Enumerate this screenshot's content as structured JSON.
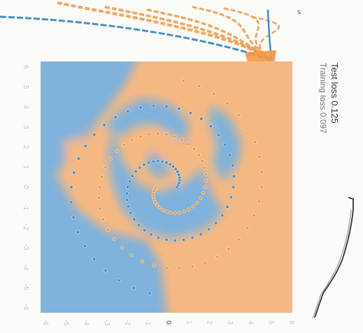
{
  "stats": {
    "test_loss_label": "Test loss",
    "test_loss_value": "0.125",
    "training_loss_label": "Training loss",
    "training_loss_value": "0.097"
  },
  "corner_label": "s",
  "colors": {
    "positive": "#f29844",
    "negative": "#4a8fc9",
    "positive_region": "#f6b882",
    "negative_region": "#7fb2dc",
    "background": "#fbfbf8"
  },
  "chart_data": {
    "type": "scatter",
    "title": "",
    "xlabel": "",
    "ylabel": "",
    "xlim": [
      -6,
      6
    ],
    "ylim": [
      -6,
      6
    ],
    "x_ticks": [
      "-6",
      "-5",
      "-4",
      "-3",
      "-2",
      "-1",
      "0",
      "1",
      "2",
      "3",
      "4",
      "5",
      "6"
    ],
    "y_ticks": [
      "6",
      "5",
      "4",
      "3",
      "2",
      "1",
      "0",
      "-1",
      "-2",
      "-3",
      "-4",
      "-5",
      "-6"
    ],
    "grid": false,
    "series": [
      {
        "color": "orange",
        "pattern": "spiral",
        "turns": 1.75,
        "max_radius": 5.2,
        "phase_deg": 180
      },
      {
        "color": "blue",
        "pattern": "spiral",
        "turns": 1.75,
        "max_radius": 5.2,
        "phase_deg": 0
      }
    ]
  }
}
